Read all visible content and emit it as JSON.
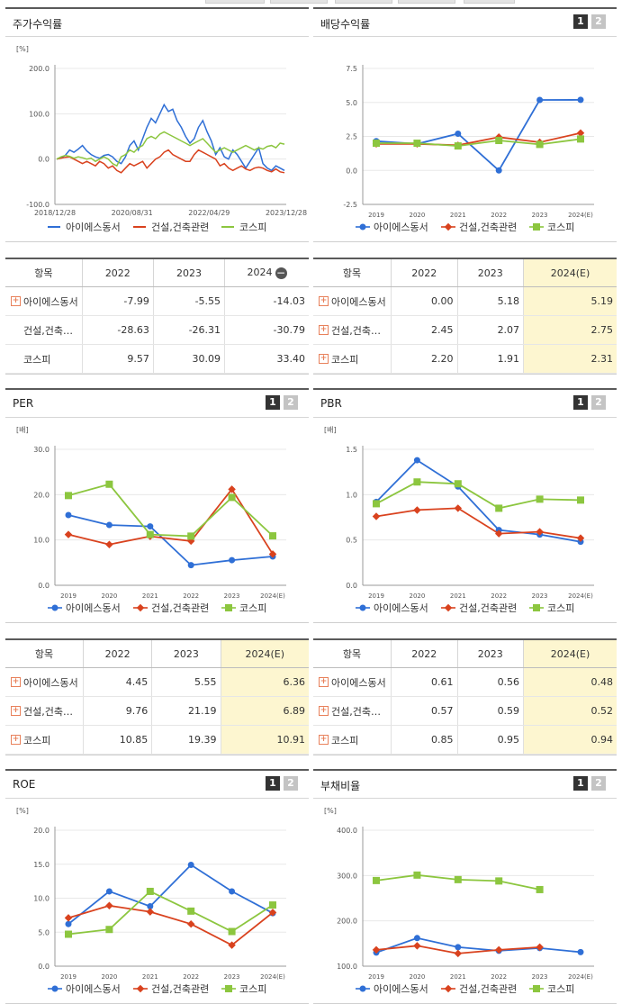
{
  "colors": {
    "s1": "#2f6fd6",
    "s2": "#d9421e",
    "s3": "#8cc63f",
    "highlight": "#fdf6d0",
    "plus": "#e8815b"
  },
  "legend": [
    "아이에스동서",
    "건설,건축관련",
    "코스피"
  ],
  "pager": [
    "1",
    "2"
  ],
  "panels": {
    "stock": {
      "title": "주가수익률"
    },
    "dividend": {
      "title": "배당수익률"
    },
    "per": {
      "title": "PER"
    },
    "pbr": {
      "title": "PBR"
    },
    "roe": {
      "title": "ROE"
    },
    "debt": {
      "title": "부채비율"
    }
  },
  "tables": {
    "stock": {
      "headers": [
        "항목",
        "2022",
        "2023",
        "2024"
      ],
      "rows": [
        {
          "label": "아이에스동서",
          "values": [
            "-7.99",
            "-5.55",
            "-14.03"
          ]
        },
        {
          "label": "건설,건축관련",
          "values": [
            "-28.63",
            "-26.31",
            "-30.79"
          ]
        },
        {
          "label": "코스피",
          "values": [
            "9.57",
            "30.09",
            "33.40"
          ]
        }
      ]
    },
    "dividend": {
      "headers": [
        "항목",
        "2022",
        "2023",
        "2024(E)"
      ],
      "rows": [
        {
          "label": "아이에스동서",
          "values": [
            "0.00",
            "5.18",
            "5.19"
          ]
        },
        {
          "label": "건설,건축관련",
          "values": [
            "2.45",
            "2.07",
            "2.75"
          ]
        },
        {
          "label": "코스피",
          "values": [
            "2.20",
            "1.91",
            "2.31"
          ]
        }
      ]
    },
    "per": {
      "headers": [
        "항목",
        "2022",
        "2023",
        "2024(E)"
      ],
      "rows": [
        {
          "label": "아이에스동서",
          "values": [
            "4.45",
            "5.55",
            "6.36"
          ]
        },
        {
          "label": "건설,건축관련",
          "values": [
            "9.76",
            "21.19",
            "6.89"
          ]
        },
        {
          "label": "코스피",
          "values": [
            "10.85",
            "19.39",
            "10.91"
          ]
        }
      ]
    },
    "pbr": {
      "headers": [
        "항목",
        "2022",
        "2023",
        "2024(E)"
      ],
      "rows": [
        {
          "label": "아이에스동서",
          "values": [
            "0.61",
            "0.56",
            "0.48"
          ]
        },
        {
          "label": "건설,건축관련",
          "values": [
            "0.57",
            "0.59",
            "0.52"
          ]
        },
        {
          "label": "코스피",
          "values": [
            "0.85",
            "0.95",
            "0.94"
          ]
        }
      ]
    }
  },
  "chart_data": [
    {
      "id": "stock",
      "type": "line",
      "title": "주가수익률",
      "unit": "[%]",
      "ylim": [
        -100,
        200
      ],
      "yticks": [
        "200.0",
        "100.0",
        "0.0",
        "-100.0"
      ],
      "ytick_values": [
        200,
        100,
        0,
        -100
      ],
      "xtick_labels": [
        "2018/12/28",
        "2020/08/31",
        "2022/04/29",
        "2023/12/28"
      ],
      "series": [
        {
          "name": "아이에스동서",
          "values": [
            0,
            3,
            8,
            20,
            15,
            22,
            30,
            18,
            10,
            5,
            2,
            8,
            10,
            5,
            -5,
            -10,
            5,
            30,
            40,
            20,
            45,
            70,
            90,
            80,
            100,
            120,
            105,
            110,
            85,
            70,
            50,
            35,
            45,
            70,
            85,
            60,
            40,
            10,
            25,
            5,
            0,
            20,
            10,
            -5,
            -20,
            -5,
            10,
            25,
            -10,
            -20,
            -25,
            -15,
            -20,
            -25
          ]
        },
        {
          "name": "건설,건축관련",
          "values": [
            0,
            2,
            4,
            5,
            0,
            -5,
            -10,
            -5,
            -10,
            -15,
            -5,
            -10,
            -20,
            -15,
            -25,
            -30,
            -20,
            -10,
            -15,
            -10,
            -5,
            -20,
            -10,
            0,
            5,
            15,
            20,
            10,
            5,
            0,
            -5,
            -5,
            10,
            20,
            15,
            10,
            5,
            0,
            -15,
            -10,
            -20,
            -25,
            -20,
            -15,
            -22,
            -25,
            -20,
            -18,
            -20,
            -25,
            -28,
            -22,
            -28,
            -30
          ]
        },
        {
          "name": "코스피",
          "values": [
            0,
            5,
            8,
            6,
            2,
            5,
            3,
            0,
            2,
            -5,
            0,
            5,
            0,
            -10,
            -15,
            5,
            10,
            20,
            15,
            25,
            30,
            45,
            50,
            45,
            55,
            60,
            55,
            50,
            45,
            40,
            35,
            30,
            35,
            40,
            45,
            35,
            25,
            15,
            20,
            25,
            20,
            15,
            20,
            25,
            30,
            25,
            20,
            25,
            22,
            28,
            30,
            25,
            35,
            33
          ]
        }
      ]
    },
    {
      "id": "dividend",
      "type": "line",
      "title": "배당수익률",
      "unit": "",
      "ylim": [
        -2.5,
        7.5
      ],
      "yticks": [
        "7.5",
        "5.0",
        "2.5",
        "0.0",
        "-2.5"
      ],
      "ytick_values": [
        7.5,
        5.0,
        2.5,
        0.0,
        -2.5
      ],
      "categories": [
        "2019",
        "2020",
        "2021",
        "2022",
        "2023",
        "2024(E)"
      ],
      "series": [
        {
          "name": "아이에스동서",
          "values": [
            2.15,
            1.95,
            2.7,
            0.0,
            5.18,
            5.19
          ]
        },
        {
          "name": "건설,건축관련",
          "values": [
            1.95,
            1.95,
            1.85,
            2.45,
            2.07,
            2.75
          ]
        },
        {
          "name": "코스피",
          "values": [
            2.0,
            2.0,
            1.8,
            2.2,
            1.91,
            2.31
          ]
        }
      ]
    },
    {
      "id": "per",
      "type": "line",
      "title": "PER",
      "unit": "[배]",
      "ylim": [
        0,
        30
      ],
      "yticks": [
        "30.0",
        "20.0",
        "10.0",
        "0.0"
      ],
      "ytick_values": [
        30,
        20,
        10,
        0
      ],
      "categories": [
        "2019",
        "2020",
        "2021",
        "2022",
        "2023",
        "2024(E)"
      ],
      "series": [
        {
          "name": "아이에스동서",
          "values": [
            15.5,
            13.3,
            13.0,
            4.45,
            5.55,
            6.36
          ]
        },
        {
          "name": "건설,건축관련",
          "values": [
            11.2,
            9.0,
            10.8,
            9.76,
            21.19,
            6.89
          ]
        },
        {
          "name": "코스피",
          "values": [
            19.8,
            22.3,
            11.2,
            10.85,
            19.39,
            10.91
          ]
        }
      ]
    },
    {
      "id": "pbr",
      "type": "line",
      "title": "PBR",
      "unit": "[배]",
      "ylim": [
        0,
        1.5
      ],
      "yticks": [
        "1.5",
        "1.0",
        "0.5",
        "0.0"
      ],
      "ytick_values": [
        1.5,
        1.0,
        0.5,
        0.0
      ],
      "categories": [
        "2019",
        "2020",
        "2021",
        "2022",
        "2023",
        "2024(E)"
      ],
      "series": [
        {
          "name": "아이에스동서",
          "values": [
            0.92,
            1.38,
            1.09,
            0.61,
            0.56,
            0.48
          ]
        },
        {
          "name": "건설,건축관련",
          "values": [
            0.76,
            0.83,
            0.85,
            0.57,
            0.59,
            0.52
          ]
        },
        {
          "name": "코스피",
          "values": [
            0.9,
            1.14,
            1.12,
            0.85,
            0.95,
            0.94
          ]
        }
      ]
    },
    {
      "id": "roe",
      "type": "line",
      "title": "ROE",
      "unit": "[%]",
      "ylim": [
        0,
        20
      ],
      "yticks": [
        "20.0",
        "15.0",
        "10.0",
        "5.0",
        "0.0"
      ],
      "ytick_values": [
        20,
        15,
        10,
        5,
        0
      ],
      "categories": [
        "2019",
        "2020",
        "2021",
        "2022",
        "2023",
        "2024(E)"
      ],
      "series": [
        {
          "name": "아이에스동서",
          "values": [
            6.2,
            11.0,
            8.8,
            14.9,
            11.0,
            7.8
          ]
        },
        {
          "name": "건설,건축관련",
          "values": [
            7.1,
            8.9,
            8.0,
            6.2,
            3.1,
            7.9
          ]
        },
        {
          "name": "코스피",
          "values": [
            4.7,
            5.4,
            11.0,
            8.1,
            5.1,
            9.0
          ]
        }
      ]
    },
    {
      "id": "debt",
      "type": "line",
      "title": "부채비율",
      "unit": "[%]",
      "ylim": [
        100,
        400
      ],
      "yticks": [
        "400.0",
        "300.0",
        "200.0",
        "100.0"
      ],
      "ytick_values": [
        400,
        300,
        200,
        100
      ],
      "categories": [
        "2019",
        "2020",
        "2021",
        "2022",
        "2023",
        "2024(E)"
      ],
      "series": [
        {
          "name": "아이에스동서",
          "values": [
            130,
            162,
            142,
            134,
            140,
            131
          ]
        },
        {
          "name": "건설,건축관련",
          "values": [
            136,
            145,
            128,
            136,
            142,
            null
          ]
        },
        {
          "name": "코스피",
          "values": [
            289,
            301,
            291,
            288,
            269,
            null
          ]
        }
      ]
    }
  ]
}
